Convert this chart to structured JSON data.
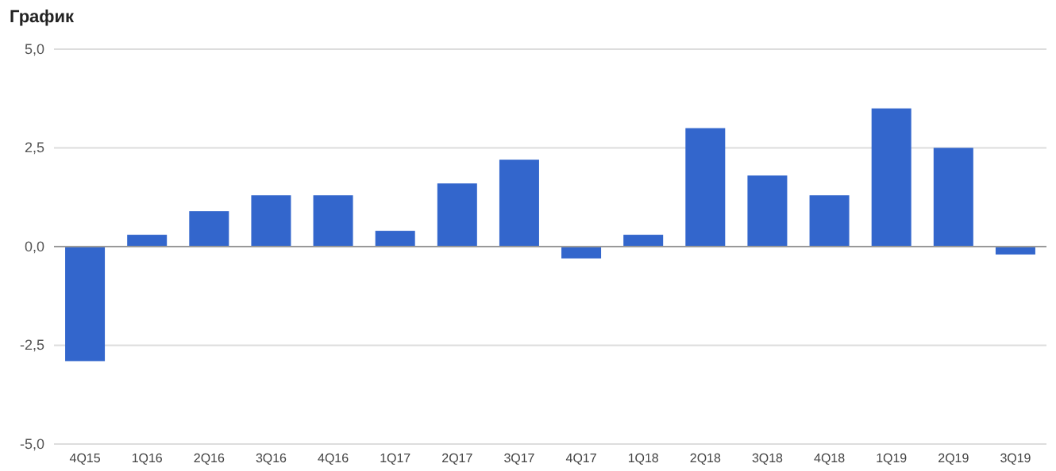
{
  "chart_data": {
    "type": "bar",
    "title": "График",
    "categories": [
      "4Q15",
      "1Q16",
      "2Q16",
      "3Q16",
      "4Q16",
      "1Q17",
      "2Q17",
      "3Q17",
      "4Q17",
      "1Q18",
      "2Q18",
      "3Q18",
      "4Q18",
      "1Q19",
      "2Q19",
      "3Q19"
    ],
    "values": [
      -2.9,
      0.3,
      0.9,
      1.3,
      1.3,
      0.4,
      1.6,
      2.2,
      -0.3,
      0.3,
      3.0,
      1.8,
      1.3,
      3.5,
      2.5,
      -0.2
    ],
    "color": "#3366cc",
    "ylim": [
      -5,
      5
    ],
    "yticks": [
      {
        "value": -5,
        "label": "-5,0"
      },
      {
        "value": -2.5,
        "label": "-2,5"
      },
      {
        "value": 0,
        "label": "0,0"
      },
      {
        "value": 2.5,
        "label": "2,5"
      },
      {
        "value": 5,
        "label": "5,0"
      }
    ],
    "grid": "y"
  }
}
